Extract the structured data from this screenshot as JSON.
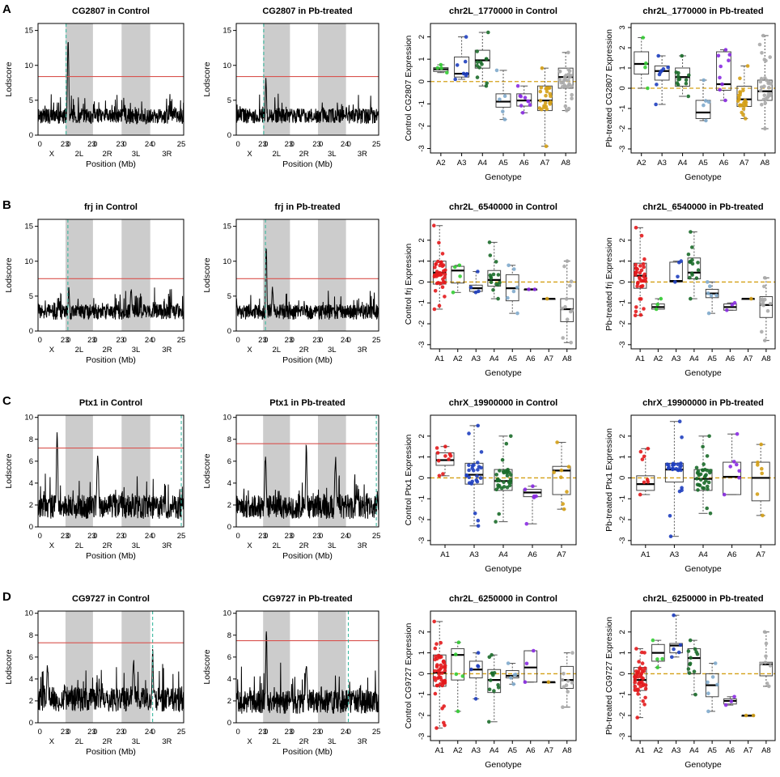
{
  "figure": {
    "colors": {
      "peak_line": "#000000",
      "threshold": "#d9534f",
      "marker": "#3cb8a0",
      "band": "#cccccc",
      "zero_line": "#d4a017"
    },
    "genotype_colors": {
      "A1": "#e31a1c",
      "A2": "#33cc33",
      "A3": "#1f3fbf",
      "A4": "#1b6b2a",
      "A5": "#7faacc",
      "A6": "#8a2be2",
      "A7": "#d4a017",
      "A8": "#aaaaaa"
    },
    "scan_axis": {
      "xlabel": "Position (Mb)",
      "ylabel": "Lodscore",
      "tick_top": [
        "0",
        "23",
        "0",
        "23",
        "0",
        "24",
        "0",
        "25"
      ],
      "tick_bottom": [
        "X",
        "2L",
        "2R",
        "3L",
        "3R"
      ]
    },
    "box_axis": {
      "xlabel": "Genotype"
    }
  },
  "chart_data": [
    {
      "panel": "A",
      "type": "line",
      "title": "CG2807 in Control",
      "ylim": [
        0,
        16
      ],
      "yticks": [
        0,
        5,
        10,
        15
      ],
      "threshold": 8.4,
      "marker_mb": 23.5,
      "peak": {
        "mb": 25.2,
        "lod": 13.5
      },
      "secondary_peaks": [],
      "baseline": 2.4
    },
    {
      "panel": "A",
      "type": "line",
      "title": "CG2807 in Pb-treated",
      "ylim": [
        0,
        16
      ],
      "yticks": [
        0,
        5,
        10,
        15
      ],
      "threshold": 8.4,
      "marker_mb": 23.5,
      "peak": {
        "mb": 25.4,
        "lod": 7.9
      },
      "secondary_peaks": [],
      "baseline": 2.4
    },
    {
      "panel": "A",
      "type": "box",
      "title": "chr2L_1770000 in Control",
      "ylabel": "Control CG2807 Expression",
      "ylim": [
        -3.2,
        2.6
      ],
      "yticks": [
        -3,
        -2,
        -1,
        0,
        1,
        2
      ],
      "zero_line": 0,
      "groups": [
        {
          "g": "A2",
          "med": 0.55,
          "q1": 0.45,
          "q3": 0.62,
          "lo": 0.4,
          "hi": 0.75,
          "n": 4
        },
        {
          "g": "A3",
          "med": 0.35,
          "q1": 0.2,
          "q3": 1.1,
          "lo": 0.1,
          "hi": 2.0,
          "n": 7
        },
        {
          "g": "A4",
          "med": 0.95,
          "q1": 0.6,
          "q3": 1.4,
          "lo": -0.2,
          "hi": 2.2,
          "n": 12
        },
        {
          "g": "A5",
          "med": -0.9,
          "q1": -1.15,
          "q3": -0.55,
          "lo": -1.7,
          "hi": 0.5,
          "n": 5
        },
        {
          "g": "A6",
          "med": -0.85,
          "q1": -1.1,
          "q3": -0.55,
          "lo": -1.4,
          "hi": -0.2,
          "n": 9
        },
        {
          "g": "A7",
          "med": -0.85,
          "q1": -1.3,
          "q3": -0.2,
          "lo": -2.9,
          "hi": 0.6,
          "n": 24
        },
        {
          "g": "A8",
          "med": 0.2,
          "q1": -0.3,
          "q3": 0.6,
          "lo": -1.3,
          "hi": 1.3,
          "n": 28
        }
      ]
    },
    {
      "panel": "A",
      "type": "box",
      "title": "chr2L_1770000 in Pb-treated",
      "ylabel": "Pb-treated CG2807 Expression",
      "ylim": [
        -3.2,
        3.2
      ],
      "yticks": [
        -3,
        -2,
        -1,
        0,
        1,
        2,
        3
      ],
      "zero_line": 0,
      "groups": [
        {
          "g": "A2",
          "med": 1.2,
          "q1": 0.7,
          "q3": 1.8,
          "lo": 0.0,
          "hi": 2.5,
          "n": 4
        },
        {
          "g": "A3",
          "med": 0.85,
          "q1": 0.4,
          "q3": 1.1,
          "lo": -0.8,
          "hi": 1.6,
          "n": 8
        },
        {
          "g": "A4",
          "med": 0.55,
          "q1": 0.1,
          "q3": 1.0,
          "lo": -0.4,
          "hi": 1.6,
          "n": 12
        },
        {
          "g": "A5",
          "med": -1.2,
          "q1": -1.5,
          "q3": -0.6,
          "lo": -1.6,
          "hi": 0.4,
          "n": 5
        },
        {
          "g": "A6",
          "med": 0.2,
          "q1": -0.1,
          "q3": 1.8,
          "lo": -0.6,
          "hi": 1.9,
          "n": 9
        },
        {
          "g": "A7",
          "med": -0.55,
          "q1": -0.9,
          "q3": 0.1,
          "lo": -1.5,
          "hi": 1.1,
          "n": 24
        },
        {
          "g": "A8",
          "med": -0.15,
          "q1": -0.6,
          "q3": 0.4,
          "lo": -2.0,
          "hi": 2.6,
          "n": 28
        }
      ]
    },
    {
      "panel": "B",
      "type": "line",
      "title": "frj in Control",
      "ylim": [
        0,
        16
      ],
      "yticks": [
        0,
        5,
        10,
        15
      ],
      "threshold": 7.5,
      "marker_mb": 25.0,
      "peak": {
        "mb": 25.8,
        "lod": 6.3
      },
      "secondary_peaks": [
        {
          "mb": 78.0,
          "lod": 5.9
        }
      ],
      "baseline": 2.4
    },
    {
      "panel": "B",
      "type": "line",
      "title": "frj in Pb-treated",
      "ylim": [
        0,
        16
      ],
      "yticks": [
        0,
        5,
        10,
        15
      ],
      "threshold": 7.5,
      "marker_mb": 25.0,
      "peak": {
        "mb": 25.6,
        "lod": 12.2
      },
      "secondary_peaks": [
        {
          "mb": 31.0,
          "lod": 6.0
        }
      ],
      "baseline": 2.4
    },
    {
      "panel": "B",
      "type": "box",
      "title": "chr2L_6540000 in Control",
      "ylabel": "Control frj Expression",
      "ylim": [
        -3.2,
        3.0
      ],
      "yticks": [
        -3,
        -2,
        -1,
        0,
        1,
        2
      ],
      "zero_line": 0,
      "groups": [
        {
          "g": "A1",
          "med": 0.45,
          "q1": -0.1,
          "q3": 1.0,
          "lo": -1.3,
          "hi": 2.7,
          "n": 40
        },
        {
          "g": "A2",
          "med": 0.55,
          "q1": -0.05,
          "q3": 0.75,
          "lo": -0.5,
          "hi": 0.8,
          "n": 4
        },
        {
          "g": "A3",
          "med": -0.3,
          "q1": -0.45,
          "q3": -0.15,
          "lo": -0.5,
          "hi": 0.5,
          "n": 4
        },
        {
          "g": "A4",
          "med": 0.1,
          "q1": -0.2,
          "q3": 0.55,
          "lo": -0.8,
          "hi": 1.9,
          "n": 14
        },
        {
          "g": "A5",
          "med": -0.3,
          "q1": -0.9,
          "q3": 0.35,
          "lo": -1.5,
          "hi": 0.8,
          "n": 6
        },
        {
          "g": "A6",
          "med": -0.35,
          "q1": -0.35,
          "q3": -0.35,
          "lo": -0.35,
          "hi": -0.35,
          "n": 2
        },
        {
          "g": "A7",
          "med": -0.8,
          "q1": -0.8,
          "q3": -0.8,
          "lo": -0.8,
          "hi": -0.8,
          "n": 1
        },
        {
          "g": "A8",
          "med": -1.3,
          "q1": -1.9,
          "q3": -0.8,
          "lo": -2.9,
          "hi": 1.0,
          "n": 12
        }
      ]
    },
    {
      "panel": "B",
      "type": "box",
      "title": "chr2L_6540000 in Pb-treated",
      "ylabel": "Pb-treated frj Expression",
      "ylim": [
        -3.2,
        3.0
      ],
      "yticks": [
        -3,
        -2,
        -1,
        0,
        1,
        2
      ],
      "zero_line": 0,
      "groups": [
        {
          "g": "A1",
          "med": 0.3,
          "q1": -0.3,
          "q3": 0.9,
          "lo": -1.6,
          "hi": 2.6,
          "n": 38
        },
        {
          "g": "A2",
          "med": -1.2,
          "q1": -1.3,
          "q3": -1.05,
          "lo": -1.3,
          "hi": -0.8,
          "n": 3
        },
        {
          "g": "A3",
          "med": 0.05,
          "q1": 0.0,
          "q3": 0.95,
          "lo": 0.0,
          "hi": 1.0,
          "n": 4
        },
        {
          "g": "A4",
          "med": 0.45,
          "q1": 0.15,
          "q3": 1.15,
          "lo": -0.8,
          "hi": 2.4,
          "n": 14
        },
        {
          "g": "A5",
          "med": -0.55,
          "q1": -0.75,
          "q3": -0.35,
          "lo": -1.5,
          "hi": 0.0,
          "n": 6
        },
        {
          "g": "A6",
          "med": -1.2,
          "q1": -1.35,
          "q3": -1.05,
          "lo": -1.35,
          "hi": -1.0,
          "n": 3
        },
        {
          "g": "A7",
          "med": -0.8,
          "q1": -0.8,
          "q3": -0.8,
          "lo": -0.8,
          "hi": -0.8,
          "n": 1
        },
        {
          "g": "A8",
          "med": -1.1,
          "q1": -1.7,
          "q3": -0.7,
          "lo": -2.8,
          "hi": 0.2,
          "n": 12
        }
      ]
    },
    {
      "panel": "C",
      "type": "line",
      "title": "Ptx1 in Control",
      "ylim": [
        0,
        10.2
      ],
      "yticks": [
        0,
        2,
        4,
        6,
        8,
        10
      ],
      "threshold": 7.2,
      "marker_mb": 120.0,
      "peak": {
        "mb": 16.0,
        "lod": 8.5
      },
      "secondary_peaks": [
        {
          "mb": 50.0,
          "lod": 6.5
        }
      ],
      "baseline": 1.5
    },
    {
      "panel": "C",
      "type": "line",
      "title": "Ptx1 in Pb-treated",
      "ylim": [
        0,
        10.2
      ],
      "yticks": [
        0,
        2,
        4,
        6,
        8,
        10
      ],
      "threshold": 7.6,
      "marker_mb": 120.0,
      "peak": {
        "mb": 60.0,
        "lod": 7.4
      },
      "secondary_peaks": [
        {
          "mb": 25.0,
          "lod": 6.3
        },
        {
          "mb": 85.0,
          "lod": 6.2
        }
      ],
      "baseline": 1.5
    },
    {
      "panel": "C",
      "type": "box",
      "title": "chrX_19900000 in Control",
      "ylabel": "Control Ptx1 Expression",
      "ylim": [
        -3.2,
        3.0
      ],
      "yticks": [
        -3,
        -2,
        -1,
        0,
        1,
        2
      ],
      "zero_line": 0,
      "groups": [
        {
          "g": "A1",
          "med": 0.85,
          "q1": 0.6,
          "q3": 1.2,
          "lo": 0.1,
          "hi": 1.5,
          "n": 10
        },
        {
          "g": "A3",
          "med": 0.15,
          "q1": -0.3,
          "q3": 0.7,
          "lo": -2.3,
          "hi": 2.5,
          "n": 26
        },
        {
          "g": "A4",
          "med": -0.15,
          "q1": -0.6,
          "q3": 0.4,
          "lo": -2.1,
          "hi": 2.0,
          "n": 34
        },
        {
          "g": "A6",
          "med": -0.7,
          "q1": -0.9,
          "q3": -0.55,
          "lo": -2.2,
          "hi": -0.4,
          "n": 6
        },
        {
          "g": "A7",
          "med": 0.35,
          "q1": -0.8,
          "q3": 0.55,
          "lo": -1.5,
          "hi": 1.7,
          "n": 8
        }
      ]
    },
    {
      "panel": "C",
      "type": "box",
      "title": "chrX_19900000 in Pb-treated",
      "ylabel": "Pb-treated Ptx1 Expression",
      "ylim": [
        -3.2,
        3.0
      ],
      "yticks": [
        -3,
        -2,
        -1,
        0,
        1,
        2
      ],
      "zero_line": 0,
      "groups": [
        {
          "g": "A1",
          "med": -0.3,
          "q1": -0.6,
          "q3": 0.1,
          "lo": -0.8,
          "hi": 1.4,
          "n": 8
        },
        {
          "g": "A3",
          "med": 0.4,
          "q1": -0.2,
          "q3": 0.7,
          "lo": -2.8,
          "hi": 2.7,
          "n": 26
        },
        {
          "g": "A4",
          "med": -0.05,
          "q1": -0.6,
          "q3": 0.4,
          "lo": -1.7,
          "hi": 2.0,
          "n": 34
        },
        {
          "g": "A6",
          "med": 0.05,
          "q1": -0.8,
          "q3": 0.75,
          "lo": -0.8,
          "hi": 2.1,
          "n": 7
        },
        {
          "g": "A7",
          "med": 0.0,
          "q1": -1.1,
          "q3": 0.75,
          "lo": -1.8,
          "hi": 1.6,
          "n": 7
        }
      ]
    },
    {
      "panel": "D",
      "type": "line",
      "title": "CG9727 in Control",
      "ylim": [
        0,
        10.2
      ],
      "yticks": [
        0,
        2,
        4,
        6,
        8,
        10
      ],
      "threshold": 7.3,
      "marker_mb": 96.0,
      "peak": {
        "mb": 96.0,
        "lod": 6.5
      },
      "secondary_peaks": [
        {
          "mb": 80.0,
          "lod": 5.7
        },
        {
          "mb": 8.0,
          "lod": 5.2
        }
      ],
      "baseline": 1.8
    },
    {
      "panel": "D",
      "type": "line",
      "title": "CG9727 in Pb-treated",
      "ylim": [
        0,
        10.2
      ],
      "yticks": [
        0,
        2,
        4,
        6,
        8,
        10
      ],
      "threshold": 7.5,
      "marker_mb": 96.0,
      "peak": {
        "mb": 25.8,
        "lod": 8.3
      },
      "secondary_peaks": [
        {
          "mb": 60.0,
          "lod": 5.3
        }
      ],
      "baseline": 1.6
    },
    {
      "panel": "D",
      "type": "box",
      "title": "chr2L_6250000 in Control",
      "ylabel": "Control CG9727 Expression",
      "ylim": [
        -3.2,
        3.0
      ],
      "yticks": [
        -3,
        -2,
        -1,
        0,
        1,
        2
      ],
      "zero_line": 0,
      "groups": [
        {
          "g": "A1",
          "med": 0.05,
          "q1": -0.6,
          "q3": 0.9,
          "lo": -2.6,
          "hi": 2.5,
          "n": 50
        },
        {
          "g": "A2",
          "med": 0.9,
          "q1": -0.3,
          "q3": 1.2,
          "lo": -1.8,
          "hi": 1.5,
          "n": 5
        },
        {
          "g": "A3",
          "med": 0.2,
          "q1": -0.2,
          "q3": 0.6,
          "lo": -1.2,
          "hi": 1.0,
          "n": 5
        },
        {
          "g": "A4",
          "med": -0.3,
          "q1": -0.9,
          "q3": 0.2,
          "lo": -2.3,
          "hi": 0.9,
          "n": 12
        },
        {
          "g": "A5",
          "med": -0.1,
          "q1": -0.2,
          "q3": 0.15,
          "lo": -0.5,
          "hi": 0.5,
          "n": 5
        },
        {
          "g": "A6",
          "med": 0.3,
          "q1": -0.4,
          "q3": 1.1,
          "lo": -0.4,
          "hi": 1.1,
          "n": 3
        },
        {
          "g": "A7",
          "med": -0.4,
          "q1": -0.4,
          "q3": -0.4,
          "lo": -0.4,
          "hi": -0.4,
          "n": 1
        },
        {
          "g": "A8",
          "med": -0.3,
          "q1": -0.7,
          "q3": 0.35,
          "lo": -1.6,
          "hi": 1.0,
          "n": 9
        }
      ]
    },
    {
      "panel": "D",
      "type": "box",
      "title": "chr2L_6250000 in Pb-treated",
      "ylabel": "Pb-treated CG9727 Expression",
      "ylim": [
        -3.2,
        3.0
      ],
      "yticks": [
        -3,
        -2,
        -1,
        0,
        1,
        2
      ],
      "zero_line": 0,
      "groups": [
        {
          "g": "A1",
          "med": -0.3,
          "q1": -0.8,
          "q3": 0.3,
          "lo": -2.1,
          "hi": 1.2,
          "n": 44
        },
        {
          "g": "A2",
          "med": 1.0,
          "q1": 0.6,
          "q3": 1.4,
          "lo": 0.3,
          "hi": 1.6,
          "n": 4
        },
        {
          "g": "A3",
          "med": 1.35,
          "q1": 1.0,
          "q3": 1.45,
          "lo": 0.8,
          "hi": 2.8,
          "n": 5
        },
        {
          "g": "A4",
          "med": 0.75,
          "q1": 0.0,
          "q3": 1.2,
          "lo": -1.0,
          "hi": 1.6,
          "n": 12
        },
        {
          "g": "A5",
          "med": -0.55,
          "q1": -1.1,
          "q3": 0.0,
          "lo": -1.8,
          "hi": 0.5,
          "n": 6
        },
        {
          "g": "A6",
          "med": -1.3,
          "q1": -1.45,
          "q3": -1.2,
          "lo": -1.5,
          "hi": -1.1,
          "n": 3
        },
        {
          "g": "A7",
          "med": -2.0,
          "q1": -2.0,
          "q3": -2.0,
          "lo": -2.0,
          "hi": -2.0,
          "n": 2
        },
        {
          "g": "A8",
          "med": 0.45,
          "q1": -0.1,
          "q3": 0.55,
          "lo": -0.6,
          "hi": 2.0,
          "n": 8
        }
      ]
    }
  ]
}
